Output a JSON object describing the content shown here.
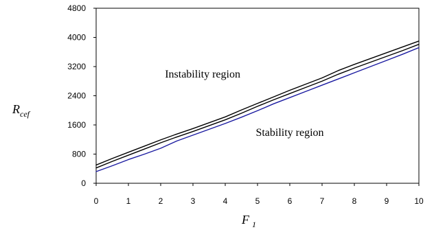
{
  "chart_data": {
    "type": "line",
    "xlabel": {
      "main": "F",
      "sub": "1"
    },
    "ylabel": {
      "main": "R",
      "sub": "cef"
    },
    "xlim": [
      0,
      10
    ],
    "ylim": [
      0,
      4800
    ],
    "xticks": [
      0,
      1,
      2,
      3,
      4,
      5,
      6,
      7,
      8,
      9,
      10
    ],
    "yticks": [
      0,
      800,
      1600,
      2400,
      3200,
      4000,
      4800
    ],
    "grid": false,
    "annotations": [
      {
        "text": "Instability region",
        "x": 3.3,
        "y": 2900
      },
      {
        "text": "Stability region",
        "x": 6,
        "y": 1300
      }
    ],
    "series": [
      {
        "color": "#000000",
        "x": [
          0,
          0.5,
          1,
          1.5,
          2,
          2.5,
          3,
          3.5,
          4,
          4.5,
          5,
          5.5,
          6,
          6.5,
          7,
          7.5,
          8,
          8.5,
          9,
          9.5,
          10
        ],
        "values": [
          500,
          680,
          850,
          1020,
          1190,
          1350,
          1500,
          1660,
          1820,
          2010,
          2190,
          2370,
          2550,
          2720,
          2890,
          3090,
          3260,
          3420,
          3580,
          3740,
          3900
        ]
      },
      {
        "color": "#000000",
        "x": [
          0,
          0.5,
          1,
          1.5,
          2,
          2.5,
          3,
          3.5,
          4,
          4.5,
          5,
          5.5,
          6,
          6.5,
          7,
          7.5,
          8,
          8.5,
          9,
          9.5,
          10
        ],
        "values": [
          420,
          600,
          770,
          940,
          1110,
          1270,
          1420,
          1580,
          1740,
          1920,
          2110,
          2290,
          2460,
          2630,
          2800,
          2990,
          3160,
          3320,
          3480,
          3640,
          3810
        ]
      },
      {
        "color": "#1a1aa0",
        "x": [
          0,
          0.5,
          1,
          1.5,
          2,
          2.5,
          3,
          3.5,
          4,
          4.5,
          5,
          5.5,
          6,
          6.5,
          7,
          7.5,
          8,
          8.5,
          9,
          9.5,
          10
        ],
        "values": [
          320,
          480,
          650,
          800,
          960,
          1160,
          1320,
          1480,
          1640,
          1810,
          1990,
          2180,
          2350,
          2520,
          2690,
          2860,
          3030,
          3200,
          3370,
          3540,
          3720
        ]
      }
    ]
  }
}
